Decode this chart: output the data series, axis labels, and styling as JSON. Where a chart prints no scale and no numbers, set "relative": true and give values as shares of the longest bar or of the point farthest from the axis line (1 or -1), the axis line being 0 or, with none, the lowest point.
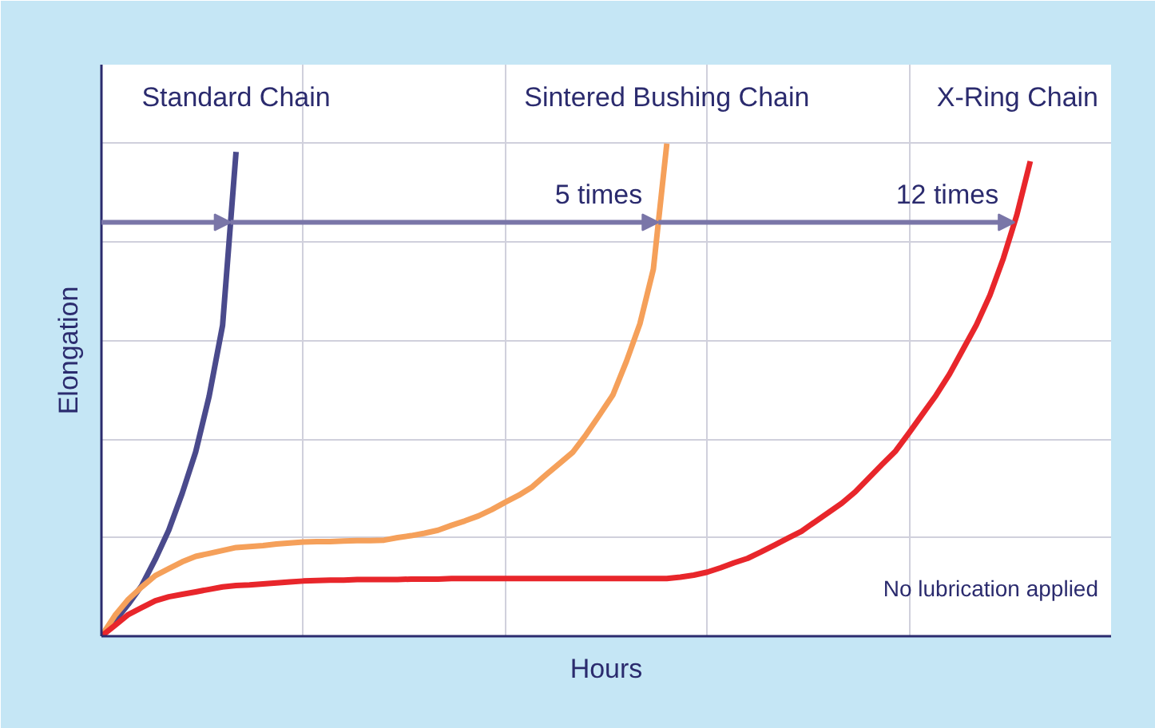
{
  "chart_data": {
    "type": "line",
    "relative": true,
    "xlabel": "Hours",
    "ylabel": "Elongation",
    "categories": [
      null,
      null,
      null,
      null,
      null,
      null,
      null,
      null,
      null,
      null,
      null,
      null,
      null,
      null,
      null,
      null,
      null,
      null,
      null,
      null,
      null,
      null,
      null,
      null,
      null,
      null,
      null,
      null,
      null,
      null,
      null,
      null,
      null,
      null,
      null,
      null,
      null,
      null,
      null,
      null,
      null,
      null,
      null,
      null,
      null,
      null,
      null,
      null,
      null,
      null,
      null,
      null,
      null,
      null,
      null,
      null,
      null,
      null,
      null,
      null,
      null,
      null,
      null,
      null,
      null,
      null,
      null,
      null,
      null,
      null,
      null,
      null,
      null,
      null,
      null,
      null
    ],
    "grid": true,
    "marker": "none",
    "line_style": "solid",
    "series": [
      {
        "name": "Standard Chain",
        "color": "#4a4a8c",
        "values": [
          0,
          0.031,
          0.065,
          0.103,
          0.156,
          0.215,
          0.29,
          0.374,
          0.487,
          0.631,
          0.983,
          null,
          null,
          null,
          null,
          null,
          null,
          null,
          null,
          null,
          null,
          null,
          null,
          null,
          null,
          null,
          null,
          null,
          null,
          null,
          null,
          null,
          null,
          null,
          null,
          null,
          null,
          null,
          null,
          null,
          null,
          null,
          null,
          null,
          null,
          null,
          null,
          null,
          null,
          null,
          null,
          null,
          null,
          null,
          null,
          null,
          null,
          null,
          null,
          null,
          null,
          null,
          null,
          null,
          null,
          null,
          null,
          null,
          null,
          null,
          null,
          null,
          null,
          null,
          null,
          null
        ]
      },
      {
        "name": "Sintered Bushing Chain",
        "color": "#f5a05a",
        "values": [
          0,
          0.042,
          0.075,
          0.1,
          0.123,
          0.137,
          0.151,
          0.162,
          0.168,
          0.174,
          0.18,
          0.182,
          0.184,
          0.187,
          0.189,
          0.191,
          0.192,
          0.192,
          0.193,
          0.194,
          0.194,
          0.195,
          0.2,
          0.204,
          0.209,
          0.215,
          0.225,
          0.234,
          0.244,
          0.257,
          0.272,
          0.286,
          0.303,
          0.327,
          0.35,
          0.373,
          0.409,
          0.449,
          0.49,
          0.558,
          0.634,
          0.745,
          1.0,
          null,
          null,
          null,
          null,
          null,
          null,
          null,
          null,
          null,
          null,
          null,
          null,
          null,
          null,
          null,
          null,
          null,
          null,
          null,
          null,
          null,
          null,
          null,
          null,
          null,
          null,
          null,
          null,
          null,
          null,
          null,
          null,
          null
        ]
      },
      {
        "name": "X-Ring Chain",
        "color": "#e8262b",
        "values": [
          0,
          0.022,
          0.044,
          0.058,
          0.072,
          0.08,
          0.085,
          0.09,
          0.095,
          0.1,
          0.103,
          0.104,
          0.106,
          0.108,
          0.11,
          0.112,
          0.113,
          0.114,
          0.114,
          0.115,
          0.115,
          0.115,
          0.115,
          0.116,
          0.116,
          0.116,
          0.117,
          0.117,
          0.117,
          0.117,
          0.117,
          0.117,
          0.117,
          0.117,
          0.117,
          0.117,
          0.117,
          0.117,
          0.117,
          0.117,
          0.117,
          0.117,
          0.117,
          0.12,
          0.124,
          0.13,
          0.139,
          0.149,
          0.158,
          0.171,
          0.185,
          0.199,
          0.213,
          0.232,
          0.251,
          0.27,
          0.293,
          0.321,
          0.349,
          0.376,
          0.413,
          0.451,
          0.489,
          0.532,
          0.582,
          0.632,
          0.692,
          0.767,
          0.855,
          0.964,
          null,
          null,
          null,
          null,
          null,
          null
        ]
      }
    ],
    "annotations": [
      "5 times",
      "12 times",
      "No lubrication applied"
    ]
  }
}
